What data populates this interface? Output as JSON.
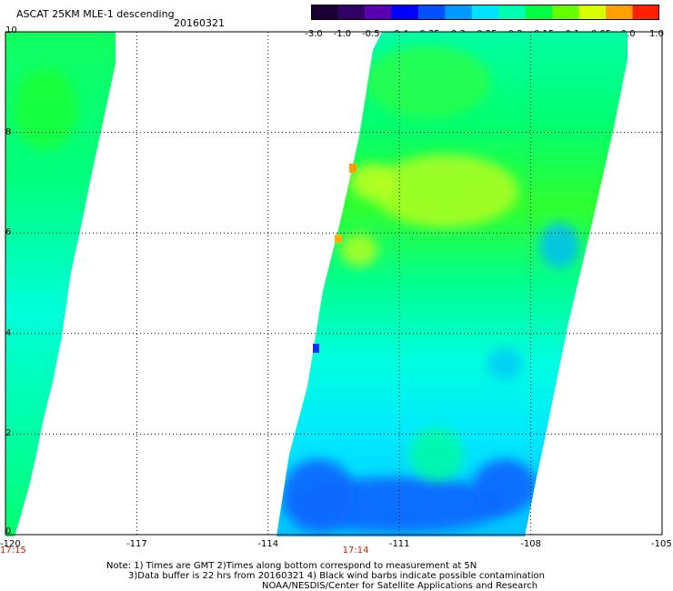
{
  "header": {
    "title": "ASCAT 25KM MLE-1 descending",
    "date": "20160321"
  },
  "colorbar": {
    "labels": [
      "-3.0",
      "-1.0",
      "-0.5",
      "-0.4",
      "-0.35",
      "-0.3",
      "-0.25",
      "-0.2",
      "-0.15",
      "-0.1",
      "-0.05",
      "0.0",
      "1.0"
    ],
    "colors": [
      "#1a0033",
      "#330066",
      "#5a00b0",
      "#0000ff",
      "#0050ff",
      "#0099ff",
      "#00e0ff",
      "#00ffb0",
      "#00ff40",
      "#66ff00",
      "#d8ff00",
      "#ffa000",
      "#ff2000"
    ]
  },
  "axes": {
    "x_ticks": [
      "-120",
      "-117",
      "-114",
      "-111",
      "-108",
      "-105"
    ],
    "y_ticks": [
      "10",
      "8",
      "6",
      "4",
      "2",
      "0"
    ],
    "xlim": [
      -120,
      -105
    ],
    "ylim": [
      0,
      10
    ],
    "grid": "dotted"
  },
  "times": [
    {
      "label": "17:15",
      "lon": -120
    },
    {
      "label": "17:14",
      "lon": -112
    }
  ],
  "notes": {
    "line1": "Note: 1) Times are GMT 2)Times along bottom correspond to measurement at 5N",
    "line2": "3)Data buffer is 22 hrs from 20160321 4) Black wind barbs indicate possible contamination",
    "line3": "NOAA/NESDIS/Center for Satellite Applications and Research"
  },
  "colors": {
    "low_blue": "#0a6bff",
    "mid_cyan": "#00f0d0",
    "green": "#00ff50",
    "yellow_green": "#b8ff20",
    "orange": "#ffa000"
  }
}
